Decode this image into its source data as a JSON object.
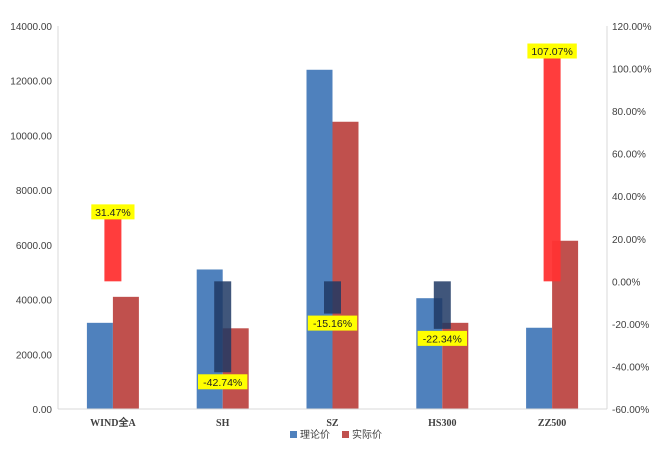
{
  "chart_data": {
    "type": "bar",
    "categories": [
      "WIND全A",
      "SH",
      "SZ",
      "HS300",
      "ZZ500"
    ],
    "series": [
      {
        "name": "理论价",
        "axis": "left",
        "color": "#4f81bd",
        "values": [
          3150,
          5100,
          12400,
          4050,
          2970
        ]
      },
      {
        "name": "实际价",
        "axis": "left",
        "color": "#c0504d",
        "values": [
          4100,
          2950,
          10500,
          3150,
          6150
        ]
      },
      {
        "name": "",
        "axis": "right",
        "values": [
          31.47,
          -42.74,
          -15.16,
          -22.34,
          107.07
        ],
        "labels": [
          "31.47%",
          "-42.74%",
          "-15.16%",
          "-22.34%",
          "107.07%"
        ],
        "positive_color": "#ff3333",
        "negative_color": "#1f3864"
      }
    ],
    "y_left": {
      "min": 0,
      "max": 14000,
      "step": 2000,
      "tick_labels": [
        "0.00",
        "2000.00",
        "4000.00",
        "6000.00",
        "8000.00",
        "10000.00",
        "12000.00",
        "14000.00"
      ]
    },
    "y_right": {
      "min": -60,
      "max": 120,
      "step": 20,
      "tick_labels": [
        "-60.00%",
        "-40.00%",
        "-20.00%",
        "0.00%",
        "20.00%",
        "40.00%",
        "60.00%",
        "80.00%",
        "100.00%",
        "120.00%"
      ]
    },
    "grid": false,
    "legend": {
      "position": "bottom",
      "items": [
        "理论价",
        "实际价"
      ]
    },
    "label_bg": "#ffff00"
  }
}
